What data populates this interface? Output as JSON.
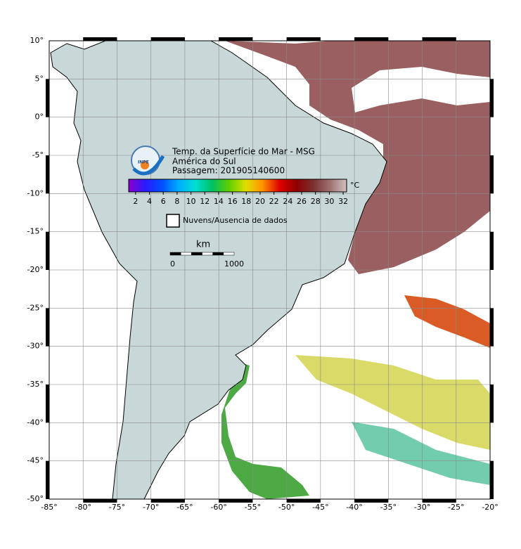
{
  "map": {
    "title": "Temp. da Superfície do Mar - MSG",
    "region": "América do Sul",
    "pass": "Passagem: 201905140600",
    "logo": "INPE",
    "legend_label": "Nuvens/Ausencia de dados",
    "lonlim": [
      -85,
      -20
    ],
    "latlim": [
      -50,
      10
    ],
    "lonticks": [
      {
        "value": -85,
        "label": "-85°"
      },
      {
        "value": -80,
        "label": "-80°"
      },
      {
        "value": -75,
        "label": "-75°"
      },
      {
        "value": -70,
        "label": "-70°"
      },
      {
        "value": -65,
        "label": "-65°"
      },
      {
        "value": -60,
        "label": "-60°"
      },
      {
        "value": -55,
        "label": "-55°"
      },
      {
        "value": -50,
        "label": "-50°"
      },
      {
        "value": -45,
        "label": "-45°"
      },
      {
        "value": -40,
        "label": "-40°"
      },
      {
        "value": -35,
        "label": "-35°"
      },
      {
        "value": -30,
        "label": "-30°"
      },
      {
        "value": -25,
        "label": "-25°"
      },
      {
        "value": -20,
        "label": "-20°"
      }
    ],
    "latticks": [
      {
        "value": 10,
        "label": "10°"
      },
      {
        "value": 5,
        "label": "5°"
      },
      {
        "value": 0,
        "label": "0°"
      },
      {
        "value": -5,
        "label": "-5°"
      },
      {
        "value": -10,
        "label": "-10°"
      },
      {
        "value": -15,
        "label": "-15°"
      },
      {
        "value": -20,
        "label": "-20°"
      },
      {
        "value": -25,
        "label": "-25°"
      },
      {
        "value": -30,
        "label": "-30°"
      },
      {
        "value": -35,
        "label": "-35°"
      },
      {
        "value": -40,
        "label": "-40°"
      },
      {
        "value": -45,
        "label": "-45°"
      },
      {
        "value": -50,
        "label": "-50°"
      }
    ],
    "colorbar": {
      "unit": "°C",
      "range": [
        1,
        32.5
      ],
      "ticks": [
        2,
        4,
        6,
        8,
        10,
        12,
        14,
        16,
        18,
        20,
        22,
        24,
        26,
        28,
        30,
        32
      ],
      "colors": [
        "#8a00c8",
        "#2a1aff",
        "#0050ff",
        "#00b0ff",
        "#00e0d0",
        "#00c060",
        "#60d000",
        "#e0e000",
        "#ff9000",
        "#e00000",
        "#900000",
        "#7a3030",
        "#a07070",
        "#d0c0c0"
      ]
    },
    "scale": {
      "unit": "km",
      "ticks": [
        0,
        1000
      ]
    }
  }
}
